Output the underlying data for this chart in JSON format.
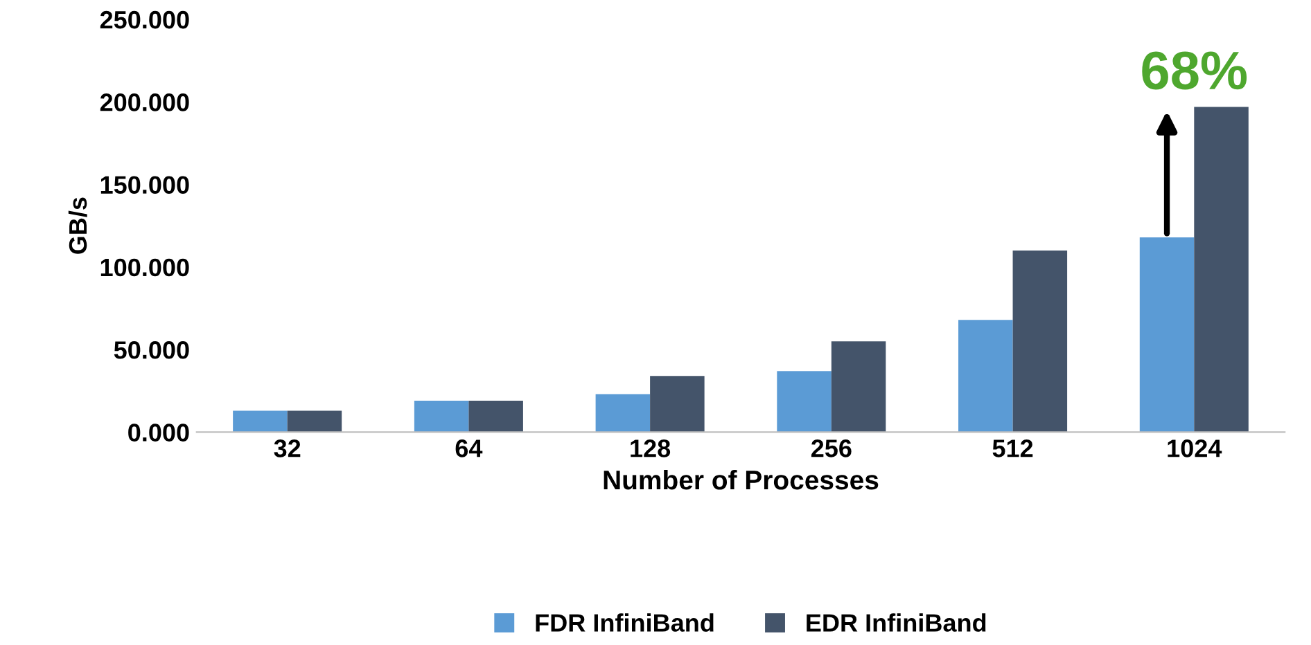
{
  "chart_data": {
    "type": "bar",
    "xlabel": "Number of Processes",
    "ylabel": "GB/s",
    "categories": [
      "32",
      "64",
      "128",
      "256",
      "512",
      "1024"
    ],
    "series": [
      {
        "name": "FDR InfiniBand",
        "color": "#5b9bd5",
        "values": [
          13,
          19,
          23,
          37,
          68,
          118
        ]
      },
      {
        "name": "EDR InfiniBand",
        "color": "#44546a",
        "values": [
          13,
          19,
          34,
          55,
          110,
          197
        ]
      }
    ],
    "ylim": [
      0,
      250
    ],
    "yticks": [
      {
        "value": 0,
        "label": "0.000"
      },
      {
        "value": 50,
        "label": "50.000"
      },
      {
        "value": 100,
        "label": "100.000"
      },
      {
        "value": 150,
        "label": "150.000"
      },
      {
        "value": 200,
        "label": "200.000"
      },
      {
        "value": 250,
        "label": "250.000"
      }
    ],
    "annotations": [
      {
        "text": "68%",
        "x": "1024",
        "y": 197
      }
    ],
    "legend": "bottom",
    "grid": false
  }
}
